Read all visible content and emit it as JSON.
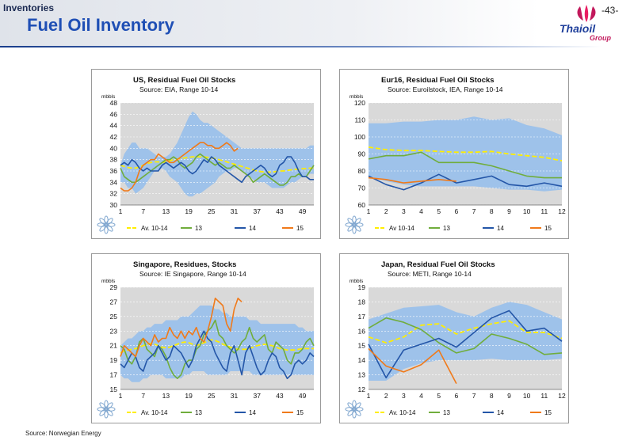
{
  "header": {
    "section": "Inventories",
    "title": "Fuel Oil Inventory",
    "page_number": "-43-",
    "logo_main": "Thaioil",
    "logo_sub": "Group"
  },
  "footer": {
    "source": "Source: Norwegian Energy"
  },
  "colors": {
    "band": "#9ec2ea",
    "bg_plot": "#d9d9d9",
    "avg": "#ffee00",
    "s13": "#70ad3c",
    "s14": "#2456a8",
    "s15": "#f07a1a"
  },
  "chart_data": [
    {
      "type": "line",
      "title": "US, Residual Fuel Oil Stocks",
      "subtitle": "Source: EIA, Range 10-14",
      "ylabel": "mbbls",
      "ylim": [
        30,
        48
      ],
      "yticks": [
        "48",
        "46",
        "44",
        "42",
        "40",
        "38",
        "36",
        "34",
        "32",
        "30"
      ],
      "xlim": [
        1,
        52
      ],
      "xticks": [
        "1",
        "7",
        "13",
        "19",
        "25",
        "31",
        "37",
        "43",
        "49"
      ],
      "range_low": [
        34,
        34,
        33,
        33,
        32,
        32.5,
        33,
        34,
        35,
        36,
        36,
        36.5,
        36,
        35,
        34.5,
        34,
        33,
        32,
        31.5,
        31.5,
        32,
        32,
        32.5,
        33,
        33.5,
        34,
        35,
        35.5,
        36,
        36,
        36.5,
        36.5,
        36,
        35.5,
        35,
        34.5,
        34,
        34,
        34,
        33.5,
        33,
        33,
        33,
        33,
        33.5,
        34,
        34,
        34.5,
        35,
        35,
        35.5,
        35.5
      ],
      "range_high": [
        37,
        39,
        40,
        41,
        41,
        40,
        40,
        40,
        39.5,
        39,
        38.5,
        38.5,
        38.5,
        39,
        40,
        41,
        42.5,
        44,
        45.5,
        46.5,
        46,
        45,
        44.5,
        44.5,
        44,
        43.5,
        43,
        42.5,
        42,
        41.5,
        41,
        40.5,
        40,
        40,
        40,
        40,
        40,
        40,
        40,
        40,
        40,
        40,
        40,
        40,
        40,
        40,
        40,
        40,
        40,
        40,
        40.5,
        40.5
      ],
      "series": [
        {
          "name": "Av. 10-14",
          "values": [
            37,
            36.8,
            36.6,
            36.5,
            36.5,
            36.7,
            37,
            37.3,
            37.5,
            37.6,
            37.6,
            37.5,
            37.6,
            37.8,
            38,
            38.1,
            38.2,
            38.3,
            38.4,
            38.5,
            38.5,
            38.5,
            38.5,
            38.4,
            38.3,
            38.2,
            38,
            37.8,
            37.6,
            37.4,
            37.2,
            37,
            36.8,
            36.6,
            36.4,
            36.2,
            36,
            35.9,
            35.8,
            35.8,
            35.8,
            35.9,
            36,
            36,
            36.1,
            36.2,
            36.3,
            36.3,
            36.4,
            36.4,
            36.5,
            36.5
          ]
        },
        {
          "name": "13",
          "values": [
            36.5,
            35,
            34.5,
            34,
            34,
            34.5,
            35,
            35.5,
            36,
            36.5,
            37,
            37.5,
            38,
            38,
            38.5,
            38,
            37,
            36.5,
            37,
            37.5,
            38.5,
            39,
            38.5,
            38,
            37.5,
            37,
            37.5,
            37,
            36.5,
            36.5,
            37,
            36.5,
            36,
            35.5,
            35,
            34,
            34.5,
            35,
            35.5,
            35,
            34.5,
            34,
            33.5,
            33.5,
            34,
            35,
            35,
            35.5,
            35,
            35,
            36,
            37
          ]
        },
        {
          "name": "14",
          "values": [
            37,
            37.5,
            37,
            38,
            37.5,
            36.5,
            36,
            36.5,
            36,
            36,
            36,
            37,
            37.5,
            37,
            36.5,
            37,
            37.5,
            37,
            36,
            35.5,
            36,
            37,
            38,
            37.5,
            38.5,
            38,
            37,
            36.5,
            36,
            35.5,
            35,
            34.5,
            34,
            35,
            35.5,
            36,
            36.5,
            37,
            36.5,
            35.5,
            35,
            35.5,
            37,
            37.5,
            38.5,
            38.5,
            37.5,
            36,
            35,
            35,
            34.5,
            34.5
          ]
        },
        {
          "name": "15",
          "values": [
            33,
            32.5,
            32.5,
            33,
            34,
            36,
            37,
            37.5,
            38,
            38,
            39,
            38.5,
            38,
            37.5,
            37.5,
            38,
            38.5,
            39,
            39.5,
            40,
            40.5,
            41,
            41,
            40.5,
            40.5,
            40,
            40,
            40.5,
            41,
            40.5,
            39.5,
            40
          ]
        }
      ]
    },
    {
      "type": "line",
      "title": "Eur16, Residual Fuel Oil Stocks",
      "subtitle": "Source: Euroilstock, IEA, Range 10-14",
      "ylabel": "mbbls",
      "ylim": [
        60,
        120
      ],
      "yticks": [
        "120",
        "110",
        "100",
        "90",
        "80",
        "70",
        "60"
      ],
      "xlim": [
        1,
        12
      ],
      "xticks": [
        "1",
        "2",
        "3",
        "4",
        "5",
        "6",
        "7",
        "8",
        "9",
        "10",
        "11",
        "12"
      ],
      "range_low": [
        77,
        74,
        72,
        71,
        71,
        71,
        71,
        70,
        69,
        69,
        68,
        69
      ],
      "range_high": [
        108,
        108,
        109,
        109,
        110,
        110,
        112,
        110,
        111,
        107,
        105,
        101
      ],
      "series": [
        {
          "name": "Av 10-14",
          "values": [
            94,
            92.5,
            92,
            92,
            91.5,
            91,
            91,
            91.5,
            90,
            89,
            88,
            86
          ]
        },
        {
          "name": "13",
          "values": [
            87,
            89,
            89,
            91,
            85,
            85,
            85,
            83,
            80,
            77,
            76,
            76
          ]
        },
        {
          "name": "14",
          "values": [
            77,
            72,
            69,
            73,
            78,
            73,
            75,
            77,
            72,
            71,
            73,
            71
          ]
        },
        {
          "name": "15",
          "values": [
            76,
            75,
            73,
            74,
            75,
            74
          ]
        }
      ]
    },
    {
      "type": "line",
      "title": "Singapore, Residues, Stocks",
      "subtitle": "Source: IE Singapore, Range 10-14",
      "ylabel": "mbbls",
      "ylim": [
        15,
        29
      ],
      "yticks": [
        "29",
        "27",
        "25",
        "23",
        "21",
        "19",
        "17",
        "15"
      ],
      "xlim": [
        1,
        52
      ],
      "xticks": [
        "1",
        "7",
        "13",
        "19",
        "25",
        "31",
        "37",
        "43",
        "49"
      ],
      "range_low": [
        17,
        16.5,
        16.5,
        16,
        16,
        16,
        16.5,
        16.5,
        17,
        17,
        17,
        17,
        16.5,
        16.5,
        16.5,
        16.5,
        16.5,
        17,
        17,
        17.5,
        17.5,
        17.5,
        17.5,
        17,
        17,
        17,
        17,
        17,
        17,
        17.5,
        17.5,
        17.5,
        17.5,
        17.5,
        17.5,
        17,
        17,
        17,
        17,
        17,
        17,
        17,
        17,
        17,
        17,
        17,
        17,
        17,
        17,
        17,
        17,
        17
      ],
      "range_high": [
        21,
        21.5,
        22,
        22,
        22.5,
        23,
        23,
        23.5,
        23.5,
        24,
        24,
        24,
        24.5,
        24.5,
        24.5,
        24.5,
        25,
        25,
        25,
        25.5,
        26,
        26.5,
        26.5,
        26.5,
        26.5,
        26,
        26,
        25.5,
        25.5,
        25,
        25,
        25,
        25,
        25,
        24.5,
        24.5,
        24.5,
        24,
        24,
        24,
        24,
        24,
        24,
        24,
        24,
        24,
        24,
        23.5,
        23.5,
        23,
        23,
        23
      ],
      "series": [
        {
          "name": "Av. 10-14",
          "values": [
            20,
            20.3,
            20.4,
            20.5,
            20.6,
            20.8,
            21,
            21.2,
            21.3,
            21.2,
            21,
            20.8,
            20.7,
            20.8,
            21,
            21.2,
            21.4,
            21.5,
            21.4,
            21.2,
            21,
            21.2,
            21.4,
            21.6,
            21.8,
            21.7,
            21.5,
            21.2,
            21,
            20.8,
            20.6,
            20.5,
            20.5,
            20.5,
            20.6,
            20.8,
            21,
            21.1,
            21.2,
            21.1,
            21,
            20.8,
            20.6,
            20.5,
            20.4,
            20.4,
            20.4,
            20.5,
            20.6,
            20.6,
            20.6,
            20.6
          ]
        },
        {
          "name": "13",
          "values": [
            21,
            20.5,
            19,
            18.5,
            19.5,
            21.5,
            22,
            20.5,
            20,
            19.5,
            21,
            20.5,
            19.5,
            18,
            17,
            16.5,
            17,
            18.5,
            19,
            19,
            20.5,
            21,
            22.5,
            23,
            23.5,
            24.5,
            22.5,
            22,
            21,
            20.5,
            20,
            20.5,
            21.5,
            22,
            23.5,
            22,
            21.5,
            22,
            22.5,
            20.5,
            20,
            21.5,
            21,
            20.5,
            19,
            18.5,
            20,
            20,
            20.5,
            21.5,
            22,
            21
          ]
        },
        {
          "name": "14",
          "values": [
            18.5,
            18,
            19,
            20,
            19.5,
            18,
            17.5,
            19,
            19.5,
            20,
            21,
            20,
            19,
            19.5,
            21,
            20.5,
            20,
            19,
            18,
            19,
            21,
            22,
            23,
            22,
            21.5,
            20,
            19,
            18,
            17.5,
            20,
            21,
            19,
            17,
            20,
            21,
            19.5,
            18,
            17,
            17.5,
            19,
            20,
            19.5,
            18,
            17.5,
            16.5,
            17,
            18.5,
            19,
            18.5,
            19,
            20,
            19.5
          ]
        },
        {
          "name": "15",
          "values": [
            19.5,
            21,
            20.5,
            20,
            19.5,
            21,
            22,
            21.5,
            21,
            22.5,
            21.5,
            22,
            22,
            23.5,
            22.5,
            22,
            23,
            22,
            23,
            22.5,
            23.5,
            22,
            21.5,
            23,
            25,
            27.5,
            27,
            26.5,
            24,
            23,
            26,
            27.5,
            27
          ]
        }
      ]
    },
    {
      "type": "line",
      "title": "Japan, Residual Fuel Oil Stocks",
      "subtitle": "Source: METI, Range 10-14",
      "ylabel": "mbbls",
      "ylim": [
        12,
        19
      ],
      "yticks": [
        "19",
        "18",
        "17",
        "16",
        "15",
        "14",
        "13",
        "12"
      ],
      "xlim": [
        1,
        12
      ],
      "xticks": [
        "1",
        "2",
        "3",
        "4",
        "5",
        "6",
        "7",
        "8",
        "9",
        "10",
        "11",
        "12"
      ],
      "range_low": [
        12.6,
        12.6,
        13.4,
        13.8,
        14,
        14,
        14,
        14.1,
        14,
        14,
        14,
        14.1
      ],
      "range_high": [
        16.8,
        17.2,
        17.6,
        17.7,
        17.8,
        17.3,
        17,
        17.6,
        18,
        17.8,
        17.3,
        16.8
      ],
      "series": [
        {
          "name": "Av. 10-14",
          "values": [
            15.6,
            15.2,
            15.6,
            16.4,
            16.5,
            15.8,
            16.2,
            16.5,
            16.7,
            15.9,
            15.9,
            15.5
          ]
        },
        {
          "name": "13",
          "values": [
            16.2,
            16.9,
            16.6,
            16.1,
            15.2,
            14.5,
            14.8,
            15.8,
            15.5,
            15.1,
            14.4,
            14.5
          ]
        },
        {
          "name": "14",
          "values": [
            15.1,
            12.8,
            14.7,
            15.1,
            15.5,
            14.9,
            15.9,
            16.9,
            17.4,
            16,
            16.2,
            15.3
          ]
        },
        {
          "name": "15",
          "values": [
            14.8,
            13.6,
            13.2,
            13.7,
            14.7,
            12.4
          ]
        }
      ]
    }
  ]
}
